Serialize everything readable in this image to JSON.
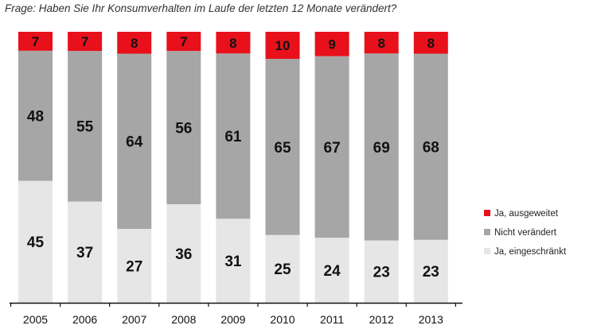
{
  "chart_data": {
    "type": "bar",
    "stacked": true,
    "orientation": "vertical",
    "normalized": true,
    "title": "Frage: Haben Sie Ihr Konsumverhalten im Laufe der letzten 12 Monate verändert?",
    "categories": [
      "2005",
      "2006",
      "2007",
      "2008",
      "2009",
      "2010",
      "2011",
      "2012",
      "2013"
    ],
    "series": [
      {
        "name": "Ja, eingeschränkt",
        "color": "#e6e6e6",
        "values": [
          45,
          37,
          27,
          36,
          31,
          25,
          24,
          23,
          23
        ]
      },
      {
        "name": "Nicht verändert",
        "color": "#a6a6a6",
        "values": [
          48,
          55,
          64,
          56,
          61,
          65,
          67,
          69,
          68
        ]
      },
      {
        "name": "Ja, ausgeweitet",
        "color": "#e8101a",
        "values": [
          7,
          7,
          8,
          7,
          8,
          10,
          9,
          8,
          8
        ]
      }
    ],
    "legend_order": [
      "Ja, ausgeweitet",
      "Nicht verändert",
      "Ja, eingeschränkt"
    ],
    "legend_position": "right",
    "grid": false,
    "data_labels": true
  }
}
